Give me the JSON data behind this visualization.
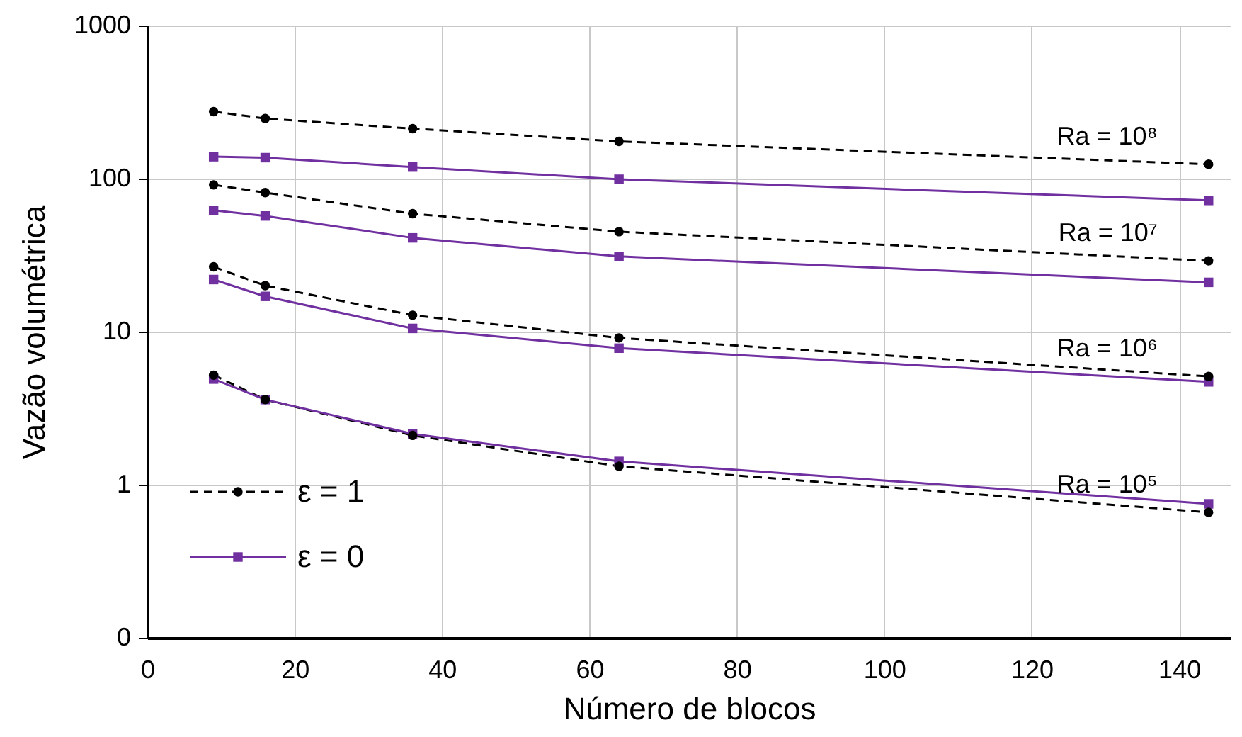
{
  "chart_data": {
    "type": "line",
    "xlabel": "Número de blocos",
    "ylabel": "Vazão volumétrica",
    "x": [
      9,
      16,
      36,
      64,
      144
    ],
    "series": [
      {
        "name": "ε = 1",
        "color": "#000000",
        "line_style": "dashed",
        "marker": "circle",
        "values": [
          274,
          247,
          212,
          175,
          124
        ]
      },
      {
        "name": "ε = 0",
        "color": "#7030a0",
        "line_style": "solid",
        "marker": "square",
        "values": [
          139,
          137,
          119,
          99,
          72
        ]
      },
      {
        "color": "#000000",
        "line_style": "dashed",
        "marker": "circle",
        "values": [
          91,
          81,
          59,
          45,
          29
        ]
      },
      {
        "color": "#7030a0",
        "line_style": "solid",
        "marker": "square",
        "values": [
          62,
          57,
          41,
          31,
          21
        ]
      },
      {
        "color": "#000000",
        "line_style": "dashed",
        "marker": "circle",
        "values": [
          26.5,
          20,
          12.8,
          9.1,
          5.1
        ]
      },
      {
        "color": "#7030a0",
        "line_style": "solid",
        "marker": "square",
        "values": [
          21.9,
          17,
          10.5,
          7.8,
          4.7
        ]
      },
      {
        "color": "#000000",
        "line_style": "dashed",
        "marker": "circle",
        "values": [
          5.2,
          3.6,
          2.1,
          1.32,
          0.66
        ]
      },
      {
        "color": "#7030a0",
        "line_style": "solid",
        "marker": "square",
        "values": [
          4.9,
          3.6,
          2.15,
          1.42,
          0.75
        ]
      }
    ],
    "annotations": [
      "Ra = 10⁸",
      "Ra = 10⁷",
      "Ra = 10⁶",
      "Ra = 10⁵"
    ],
    "xlim": [
      0,
      147
    ],
    "xticks": [
      0,
      20,
      40,
      60,
      80,
      100,
      120,
      140
    ],
    "ylim": [
      0.1,
      1000
    ],
    "yticks": [
      {
        "value": 0.1,
        "label": "0"
      },
      1,
      10,
      100,
      1000
    ],
    "log": "y",
    "grid": true,
    "legend": "bottom left"
  }
}
